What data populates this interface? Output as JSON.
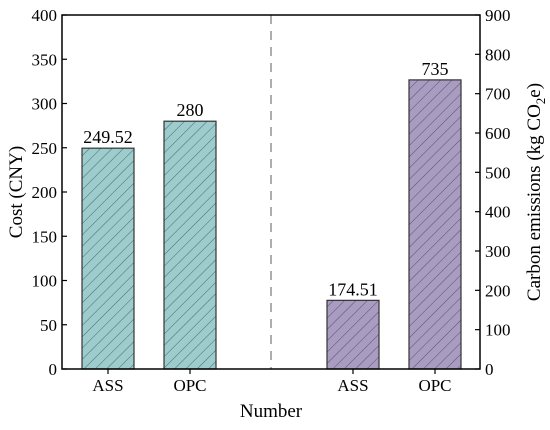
{
  "chart_data": {
    "type": "bar",
    "xlabel": "Number",
    "ylabel_left": "Cost (CNY)",
    "ylabel_right": "Carbon emissions (kg CO2e)",
    "ylim_left": [
      0,
      400
    ],
    "ylim_right": [
      0,
      900
    ],
    "yticks_left": [
      0,
      50,
      100,
      150,
      200,
      250,
      300,
      350,
      400
    ],
    "yticks_right": [
      0,
      100,
      200,
      300,
      400,
      500,
      600,
      700,
      800,
      900
    ],
    "grid": false,
    "divider": "dashed vertical line between the two groups",
    "groups": [
      {
        "name": "Cost",
        "axis": "left",
        "color": "#9ecbcc",
        "categories": [
          "ASS",
          "OPC"
        ],
        "values": [
          249.52,
          280
        ],
        "labels": [
          "249.52",
          "280"
        ]
      },
      {
        "name": "Carbon emissions",
        "axis": "right",
        "color": "#a89cc0",
        "categories": [
          "ASS",
          "OPC"
        ],
        "values": [
          174.51,
          735
        ],
        "labels": [
          "174.51",
          "735"
        ]
      }
    ]
  }
}
